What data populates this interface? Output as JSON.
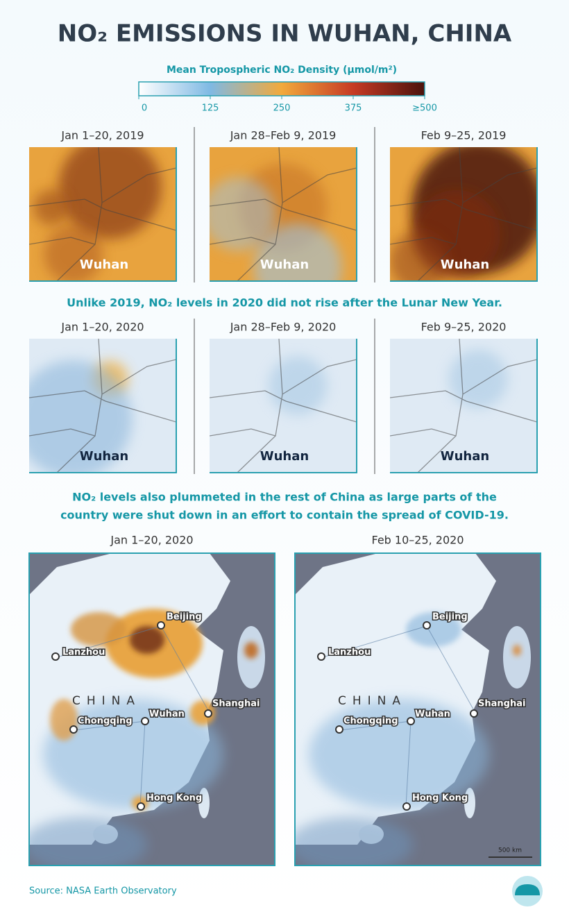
{
  "title": "NO₂ EMISSIONS IN WUHAN, CHINA",
  "legend": {
    "title": "Mean Tropospheric NO₂ Density (μmol/m²)",
    "range": [
      0,
      500
    ],
    "ticks": [
      0,
      125,
      250,
      375,
      {
        "value": 500,
        "label": "≥500"
      }
    ]
  },
  "rows": [
    {
      "panels": [
        {
          "date": "Jan 1–20, 2019",
          "label": "Wuhan"
        },
        {
          "date": "Jan 28–Feb 9, 2019",
          "label": "Wuhan"
        },
        {
          "date": "Feb 9–25, 2019",
          "label": "Wuhan"
        }
      ]
    },
    {
      "panels": [
        {
          "date": "Jan 1–20, 2020",
          "label": "Wuhan"
        },
        {
          "date": "Jan 28–Feb 9, 2020",
          "label": "Wuhan"
        },
        {
          "date": "Feb 9–25, 2020",
          "label": "Wuhan"
        }
      ]
    }
  ],
  "caption_1": "Unlike 2019, NO₂ levels in 2020 did not rise after the Lunar New Year.",
  "caption_2": [
    "NO₂ levels also plummeted in the rest of China as large parts of the",
    "country were shut down in an effort to contain the spread of COVID-19."
  ],
  "maps": [
    {
      "date": "Jan 1–20, 2020",
      "country": "CHINA",
      "cities": [
        "Beijing",
        "Lanzhou",
        "Chongqing",
        "Wuhan",
        "Shanghai",
        "Hong Kong"
      ]
    },
    {
      "date": "Feb 10–25, 2020",
      "country": "CHINA",
      "cities": [
        "Beijing",
        "Lanzhou",
        "Chongqing",
        "Wuhan",
        "Shanghai",
        "Hong Kong"
      ],
      "scale": "500 km"
    }
  ],
  "source": "Source: NASA Earth Observatory"
}
